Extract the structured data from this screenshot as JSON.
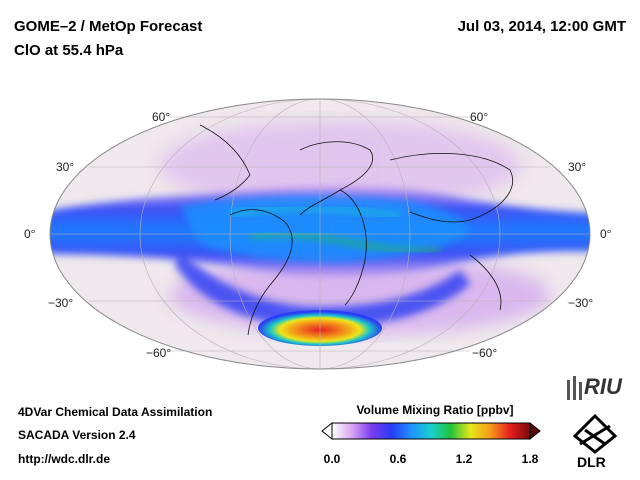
{
  "header": {
    "title_line1": "GOME–2 / MetOp Forecast",
    "title_line2": "ClO at 55.4 hPa",
    "datetime": "Jul 03, 2014, 12:00 GMT"
  },
  "map": {
    "projection": "Mollweide-like (Hammer) global",
    "lat_labels_left": [
      "60°",
      "30°",
      "0°",
      "−30°",
      "−60°"
    ],
    "lat_labels_right": [
      "60°",
      "30°",
      "0°",
      "−30°",
      "−60°"
    ]
  },
  "colorbar": {
    "title": "Volume Mixing Ratio [ppbv]",
    "ticks": [
      "0.0",
      "0.6",
      "1.2",
      "1.8"
    ],
    "colors": [
      "#ffffff",
      "#d9a6f0",
      "#7a3cf0",
      "#2a3cf5",
      "#1e90ff",
      "#19d0d0",
      "#22c33a",
      "#e8e81a",
      "#f59a1a",
      "#e51e1e",
      "#7a0a0a"
    ]
  },
  "footer": {
    "line1": "4DVar Chemical Data Assimilation",
    "line2": "SACADA Version 2.4",
    "line3": "http://wdc.dlr.de"
  },
  "logos": {
    "riu": "RIU",
    "dlr": "DLR"
  }
}
